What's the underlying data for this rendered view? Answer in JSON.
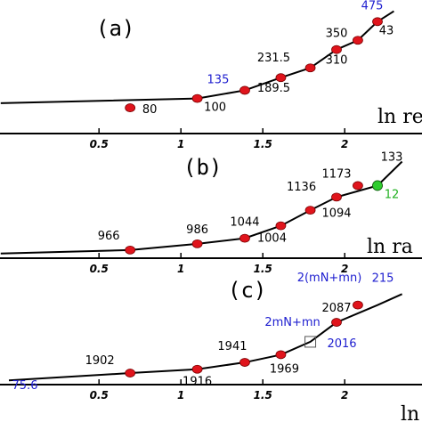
{
  "colors": {
    "line": "#000000",
    "marker": "#e0141c",
    "marker_alt": "#2ecc2e",
    "label_default": "#000000",
    "label_blue": "#2020d0",
    "label_green": "#20b020"
  },
  "chart_data": [
    {
      "type": "line",
      "panel": "(a)",
      "xlabel": "ln re",
      "xlim": [
        -0.1,
        2.45
      ],
      "xticks": [
        0.5,
        1,
        1.5,
        2
      ],
      "xtick_labels": [
        "0.5",
        "1",
        "1.5",
        "2"
      ],
      "x": [
        -0.1,
        1.1,
        1.39,
        1.61,
        1.79,
        1.95,
        2.08,
        2.2,
        2.3
      ],
      "y": [
        80,
        100,
        135,
        189.5,
        231.5,
        310,
        350,
        430,
        475
      ],
      "marker_x": [
        0.69,
        1.1,
        1.39,
        1.61,
        1.79,
        1.95,
        2.08,
        2.2
      ],
      "marker_y": [
        60,
        100,
        135,
        189.5,
        231.5,
        310,
        350,
        430
      ],
      "ylim": [
        -20,
        500
      ],
      "annotations": [
        {
          "text": "80",
          "x": 0.69,
          "y": 60,
          "color": "label_default",
          "dx": 22,
          "dy": 6
        },
        {
          "text": "100",
          "x": 1.1,
          "y": 100,
          "color": "label_default",
          "dx": 20,
          "dy": 14
        },
        {
          "text": "135",
          "x": 1.39,
          "y": 135,
          "color": "label_blue",
          "dx": -30,
          "dy": -8
        },
        {
          "text": "189.5",
          "x": 1.61,
          "y": 189.5,
          "color": "label_default",
          "dx": -8,
          "dy": 16
        },
        {
          "text": "231.5",
          "x": 1.61,
          "y": 189.5,
          "color": "label_default",
          "dx": -8,
          "dy": -18
        },
        {
          "text": "310",
          "x": 1.95,
          "y": 310,
          "color": "label_default",
          "dx": 0,
          "dy": 16
        },
        {
          "text": "350",
          "x": 1.95,
          "y": 310,
          "color": "label_default",
          "dx": 0,
          "dy": -14
        },
        {
          "text": "43",
          "x": 2.2,
          "y": 430,
          "color": "label_default",
          "dx": 10,
          "dy": 14
        },
        {
          "text": "475",
          "x": 2.2,
          "y": 430,
          "color": "label_blue",
          "dx": -6,
          "dy": -14
        }
      ]
    },
    {
      "type": "line",
      "panel": "(b)",
      "xlabel": "ln ra",
      "xlim": [
        -0.1,
        2.45
      ],
      "xticks": [
        0.5,
        1,
        1.5,
        2
      ],
      "xtick_labels": [
        "0.5",
        "1",
        "1.5",
        "2"
      ],
      "x": [
        -0.1,
        0.69,
        1.1,
        1.39,
        1.61,
        1.79,
        1.95,
        2.2,
        2.35
      ],
      "y": [
        955,
        966,
        986,
        1004,
        1044,
        1094,
        1136,
        1173,
        1250
      ],
      "marker_x": [
        0.69,
        1.1,
        1.39,
        1.61,
        1.79,
        1.95,
        2.08,
        2.2
      ],
      "marker_y": [
        966,
        986,
        1004,
        1044,
        1094,
        1136,
        1173,
        1173
      ],
      "ylim": [
        940,
        1260
      ],
      "annotations": [
        {
          "text": "966",
          "x": 0.69,
          "y": 966,
          "color": "label_default",
          "dx": -24,
          "dy": -12
        },
        {
          "text": "986",
          "x": 1.1,
          "y": 986,
          "color": "label_default",
          "dx": 0,
          "dy": -12
        },
        {
          "text": "1044",
          "x": 1.39,
          "y": 1004,
          "color": "label_default",
          "dx": 0,
          "dy": -14
        },
        {
          "text": "1004",
          "x": 1.61,
          "y": 1044,
          "color": "label_default",
          "dx": -10,
          "dy": 18
        },
        {
          "text": "1136",
          "x": 1.79,
          "y": 1094,
          "color": "label_default",
          "dx": -10,
          "dy": -22
        },
        {
          "text": "1173",
          "x": 1.95,
          "y": 1136,
          "color": "label_default",
          "dx": 0,
          "dy": -22
        },
        {
          "text": "1094",
          "x": 1.95,
          "y": 1136,
          "color": "label_default",
          "dx": 0,
          "dy": 22
        },
        {
          "text": "133",
          "x": 2.2,
          "y": 1173,
          "color": "label_default",
          "dx": 16,
          "dy": -28
        },
        {
          "text": "12",
          "x": 2.2,
          "y": 1173,
          "color": "label_green",
          "dx": 16,
          "dy": 14
        }
      ]
    },
    {
      "type": "line",
      "panel": "(c)",
      "xlabel": "ln",
      "xlim": [
        -0.05,
        2.45
      ],
      "xticks": [
        0.5,
        1,
        1.5,
        2
      ],
      "xtick_labels": [
        "0.5",
        "1",
        "1.5",
        "2"
      ],
      "x": [
        -0.05,
        0.69,
        1.1,
        1.39,
        1.61,
        1.79,
        1.95,
        2.2,
        2.35
      ],
      "y": [
        1875.6,
        1902,
        1916,
        1941,
        1969,
        2016,
        2087,
        2150,
        2190
      ],
      "marker_x": [
        0.69,
        1.1,
        1.39,
        1.61,
        1.95,
        2.08
      ],
      "marker_y": [
        1902,
        1916,
        1941,
        1969,
        2087,
        2150
      ],
      "ylim": [
        1860,
        2230
      ],
      "annotations": [
        {
          "text": "1902",
          "x": 0.69,
          "y": 1902,
          "color": "label_default",
          "dx": -34,
          "dy": -10
        },
        {
          "text": "1916",
          "x": 1.1,
          "y": 1916,
          "color": "label_default",
          "dx": 0,
          "dy": 18
        },
        {
          "text": "1941",
          "x": 1.39,
          "y": 1941,
          "color": "label_default",
          "dx": -14,
          "dy": -14
        },
        {
          "text": "1969",
          "x": 1.61,
          "y": 1969,
          "color": "label_default",
          "dx": 4,
          "dy": 20
        },
        {
          "text": "2087",
          "x": 1.95,
          "y": 2087,
          "color": "label_default",
          "dx": 0,
          "dy": -12
        },
        {
          "text": "2016",
          "x": 1.95,
          "y": 2087,
          "color": "label_blue",
          "dx": 6,
          "dy": 28
        },
        {
          "text": "2(mN+mn)",
          "x": 1.95,
          "y": 2087,
          "color": "label_blue",
          "dx": -8,
          "dy": -46
        },
        {
          "text": "2mN+mn",
          "x": 1.79,
          "y": 2016,
          "color": "label_blue",
          "dx": -20,
          "dy": -18
        },
        {
          "text": "215",
          "x": 2.2,
          "y": 2150,
          "color": "label_blue",
          "dx": 6,
          "dy": -26
        },
        {
          "text": "75.6",
          "x": -0.05,
          "y": 1875.6,
          "color": "label_blue",
          "dx": 18,
          "dy": 10
        }
      ]
    }
  ]
}
